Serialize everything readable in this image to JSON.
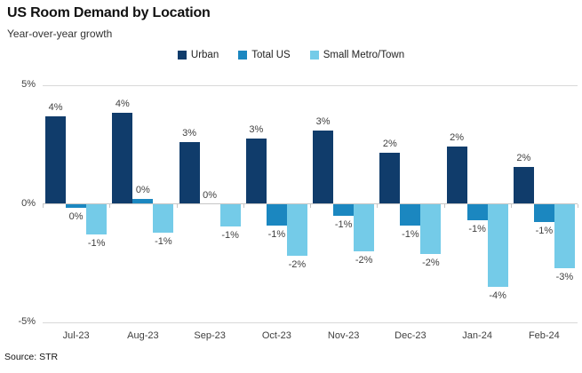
{
  "header": {
    "title": "US Room Demand by Location",
    "subtitle": "Year-over-year growth"
  },
  "source_note": "Source: STR",
  "colors": {
    "urban": "#103c6b",
    "total_us": "#1b87c0",
    "small_metro": "#74cbe8",
    "gridline": "#d9d9d9",
    "axis_text": "#404040"
  },
  "chart_data": {
    "type": "bar",
    "title": "US Room Demand by Location",
    "subtitle": "Year-over-year growth",
    "xlabel": "",
    "ylabel": "",
    "ylim": [
      -5,
      5
    ],
    "grid": "horizontal",
    "legend_position": "top",
    "categories": [
      "Jul-23",
      "Aug-23",
      "Sep-23",
      "Oct-23",
      "Nov-23",
      "Dec-23",
      "Jan-24",
      "Feb-24"
    ],
    "yticks": [
      {
        "value": 5,
        "label": "5%"
      },
      {
        "value": 0,
        "label": "0%"
      },
      {
        "value": -5,
        "label": "-5%"
      }
    ],
    "series": [
      {
        "name": "Urban",
        "color": "#103c6b",
        "values": [
          3.7,
          3.85,
          2.6,
          2.75,
          3.1,
          2.15,
          2.4,
          1.55
        ],
        "labels": [
          "4%",
          "4%",
          "3%",
          "3%",
          "3%",
          "2%",
          "2%",
          "2%"
        ]
      },
      {
        "name": "Total US",
        "color": "#1b87c0",
        "values": [
          -0.15,
          0.2,
          0,
          -0.9,
          -0.5,
          -0.9,
          -0.7,
          -0.75
        ],
        "labels": [
          "0%",
          "0%",
          "0%",
          "-1%",
          "-1%",
          "-1%",
          "-1%",
          "-1%"
        ]
      },
      {
        "name": "Small Metro/Town",
        "color": "#74cbe8",
        "values": [
          -1.3,
          -1.2,
          -0.95,
          -2.2,
          -2.0,
          -2.1,
          -3.5,
          -2.7
        ],
        "labels": [
          "-1%",
          "-1%",
          "-1%",
          "-2%",
          "-2%",
          "-2%",
          "-4%",
          "-3%"
        ]
      }
    ],
    "source": "Source: STR"
  }
}
